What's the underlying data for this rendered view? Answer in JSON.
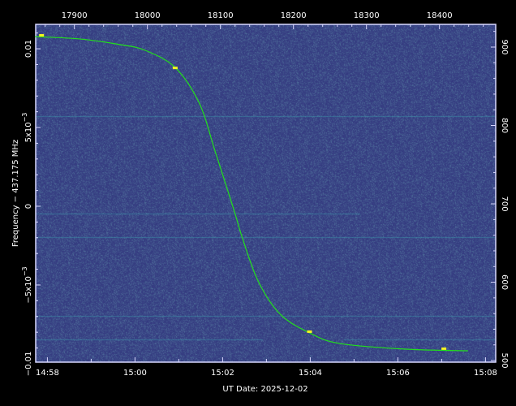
{
  "chart_data": {
    "type": "line",
    "xlabel": "UT Date: 2025-12-02",
    "ylabel": "Frequency − 437.175 MHz",
    "x_top_axis": {
      "ticks": [
        17900,
        18000,
        18100,
        18200,
        18300,
        18400
      ],
      "range": [
        17847,
        18477
      ]
    },
    "x_bottom_axis": {
      "ticks": [
        "14:58",
        "15:00",
        "15:02",
        "15:04",
        "15:06",
        "15:08"
      ]
    },
    "y_left_axis": {
      "ticks": [
        {
          "value": 0.01,
          "label": "0.01"
        },
        {
          "value": 0.005,
          "label": "5x10",
          "exp": "−3"
        },
        {
          "value": 0,
          "label": "0"
        },
        {
          "value": -0.005,
          "label": "−5x10",
          "exp": "−3"
        },
        {
          "value": -0.01,
          "label": "−0.01"
        }
      ],
      "range": [
        -0.0099,
        0.01155
      ]
    },
    "y_right_axis": {
      "ticks": [
        500,
        600,
        700,
        800,
        900
      ],
      "range": [
        498,
        929
      ]
    },
    "background": "spectrogram-noise",
    "colors": {
      "background": "#3d4188",
      "curve": "#22e01c",
      "signal": "#f5f520",
      "frame": "#d8d8ff"
    },
    "series": [
      {
        "x": [
          17846,
          17908,
          17963,
          17997,
          18038,
          18071,
          18093,
          18119,
          18130,
          18152,
          18182,
          18222,
          18263,
          18352,
          18439
        ],
        "y": [
          0.01077,
          0.01062,
          0.01026,
          0.0099,
          0.00881,
          0.00655,
          0.00345,
          -0.00031,
          -0.00201,
          -0.00479,
          -0.00686,
          -0.00804,
          -0.00871,
          -0.00907,
          -0.00918
        ]
      }
    ],
    "signal_points": {
      "x": [
        17855,
        18038,
        18222,
        18406
      ],
      "y": [
        0.01083,
        0.00876,
        -0.00799,
        -0.00907
      ]
    }
  }
}
